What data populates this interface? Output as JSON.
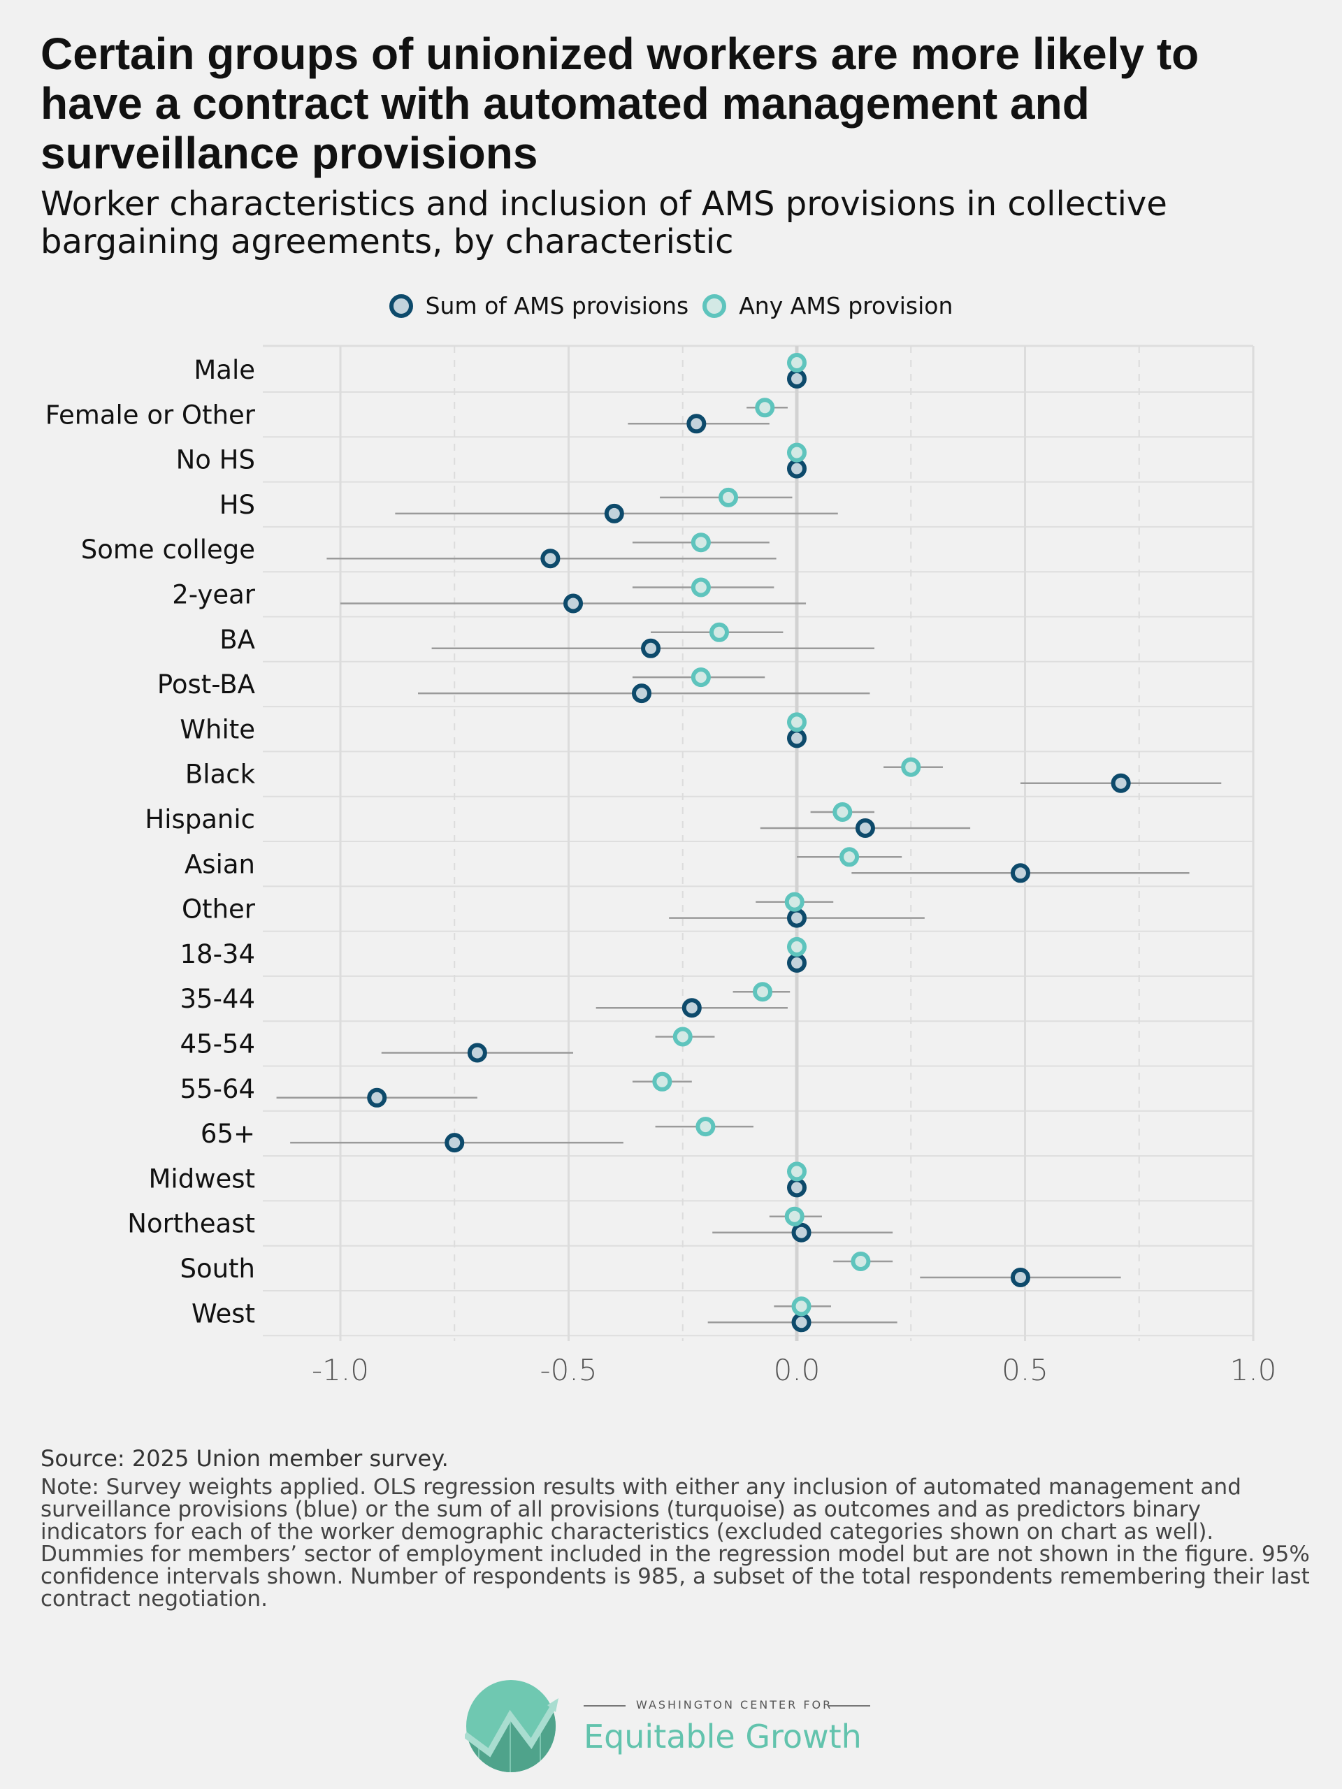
{
  "title": "Certain groups of unionized workers are more likely to have a contract with automated management and surveillance provisions",
  "subtitle": "Worker characteristics and inclusion of AMS provisions in collective bargaining agreements, by characteristic",
  "colors": {
    "sum_stroke": "#0d4a6b",
    "sum_fill": "#c3d3dc",
    "any_stroke": "#5ec4bd",
    "any_fill": "#d3e9e5",
    "ci_line": "#9a9a9a",
    "background": "#f1f1f1",
    "logo_green": "#62c3ad"
  },
  "chart_data": {
    "type": "dot-with-error-bars",
    "xlim": [
      -1.17,
      1.0
    ],
    "xticks": [
      "-1.0",
      "-0.5",
      "0.0",
      "0.5",
      "1.0"
    ],
    "xtick_values": [
      -1.0,
      -0.5,
      0.0,
      0.5,
      1.0
    ],
    "grid": true,
    "legend_position": "top",
    "legend": [
      "Sum of AMS provisions",
      "Any AMS provision"
    ],
    "categories": [
      "Male",
      "Female or Other",
      "No HS",
      "HS",
      "Some college",
      "2-year",
      "BA",
      "Post-BA",
      "White",
      "Black",
      "Hispanic",
      "Asian",
      "Other",
      "18-34",
      "35-44",
      "45-54",
      "55-64",
      "65+",
      "Midwest",
      "Northeast",
      "South",
      "West"
    ],
    "series": [
      {
        "name": "Sum of AMS provisions",
        "values": [
          0,
          -0.22,
          0,
          -0.4,
          -0.54,
          -0.49,
          -0.32,
          -0.34,
          0,
          0.71,
          0.15,
          0.49,
          0.0,
          0,
          -0.23,
          -0.7,
          -0.92,
          -0.75,
          0,
          0.01,
          0.49,
          0.01
        ],
        "ci_low": [
          null,
          -0.37,
          null,
          -0.88,
          -1.03,
          -1.0,
          -0.8,
          -0.83,
          null,
          0.49,
          -0.08,
          0.12,
          -0.28,
          null,
          -0.44,
          -0.91,
          -1.14,
          -1.11,
          null,
          -0.185,
          0.27,
          -0.195
        ],
        "ci_high": [
          null,
          -0.06,
          null,
          0.09,
          -0.045,
          0.02,
          0.17,
          0.16,
          null,
          0.93,
          0.38,
          0.86,
          0.28,
          null,
          -0.02,
          -0.49,
          -0.7,
          -0.38,
          null,
          0.21,
          0.71,
          0.22
        ]
      },
      {
        "name": "Any AMS provision",
        "values": [
          0,
          -0.07,
          0,
          -0.15,
          -0.21,
          -0.21,
          -0.17,
          -0.21,
          0,
          0.25,
          0.1,
          0.115,
          -0.005,
          0,
          -0.075,
          -0.25,
          -0.295,
          -0.2,
          0,
          -0.005,
          0.14,
          0.01
        ],
        "ci_low": [
          null,
          -0.11,
          null,
          -0.3,
          -0.36,
          -0.36,
          -0.32,
          -0.36,
          null,
          0.19,
          0.03,
          0.0,
          -0.09,
          null,
          -0.14,
          -0.31,
          -0.36,
          -0.31,
          null,
          -0.06,
          0.08,
          -0.05
        ],
        "ci_high": [
          null,
          -0.02,
          null,
          -0.01,
          -0.06,
          -0.05,
          -0.03,
          -0.07,
          null,
          0.32,
          0.17,
          0.23,
          0.08,
          null,
          -0.015,
          -0.18,
          -0.23,
          -0.095,
          null,
          0.055,
          0.21,
          0.075
        ]
      }
    ]
  },
  "source": "Source: 2025 Union member survey.",
  "note": "Note: Survey weights applied. OLS regression results with either any inclusion of automated management and surveillance provisions (blue) or the sum of all provisions (turquoise) as outcomes and as predictors binary indicators for each of the worker demographic characteristics (excluded categories shown on chart as well). Dummies for members’ sector of employment included in the regression model but are not shown in the figure. 95% confidence intervals shown. Number of respondents is 985, a subset of the total respondents remembering their last contract negotiation.",
  "logo": {
    "top": "WASHINGTON CENTER FOR",
    "main": "Equitable Growth"
  }
}
